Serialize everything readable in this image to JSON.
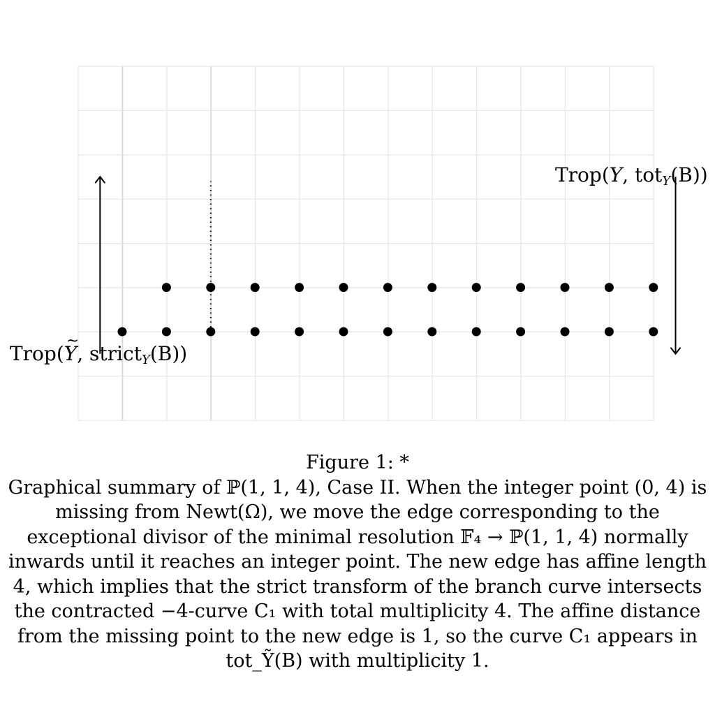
{
  "diagram": {
    "grid": {
      "columns": 13,
      "rows": 8,
      "line_color": "#e5e5e5"
    },
    "lattice_rows": [
      {
        "y": 1,
        "x": [
          0,
          1,
          2,
          3,
          4,
          5,
          6,
          7,
          8,
          9,
          10,
          11
        ]
      },
      {
        "y": 0,
        "x": [
          -1,
          0,
          1,
          2,
          3,
          4,
          5,
          6,
          7,
          8,
          9,
          10,
          11
        ]
      }
    ],
    "dotted_segment": {
      "x": 1,
      "y_from": 0,
      "y_to": 3
    },
    "left_arrow": {
      "direction": "up",
      "x": -1.5,
      "y_from": -0.5,
      "y_to": 3.5
    },
    "right_arrow": {
      "direction": "down",
      "x": 11.5,
      "y_from": 3.5,
      "y_to": -0.5
    },
    "labels": {
      "left": {
        "prefix": "Trop(",
        "var": "Y",
        "mid": ", strict",
        "sub": "Y",
        "suffix": "(B))"
      },
      "right": {
        "prefix": "Trop(",
        "var": "Y",
        "mid": ", tot",
        "sub": "Y",
        "suffix": "(B))"
      }
    }
  },
  "caption": {
    "title": "Figure 1: *",
    "body": "Graphical summary of ℙ(1, 1, 4), Case II. When the integer point (0, 4) is missing from Newt(Ω), we move the edge corresponding to the exceptional divisor of the minimal resolution 𝔽₄ → ℙ(1, 1, 4) normally inwards until it reaches an integer point. The new edge has affine length 4, which implies that the strict transform of the branch curve intersects the contracted −4-curve C₁ with total multiplicity 4. The affine distance from the missing point to the new edge is 1, so the curve C₁ appears in tot_Ỹ(B) with multiplicity 1."
  }
}
